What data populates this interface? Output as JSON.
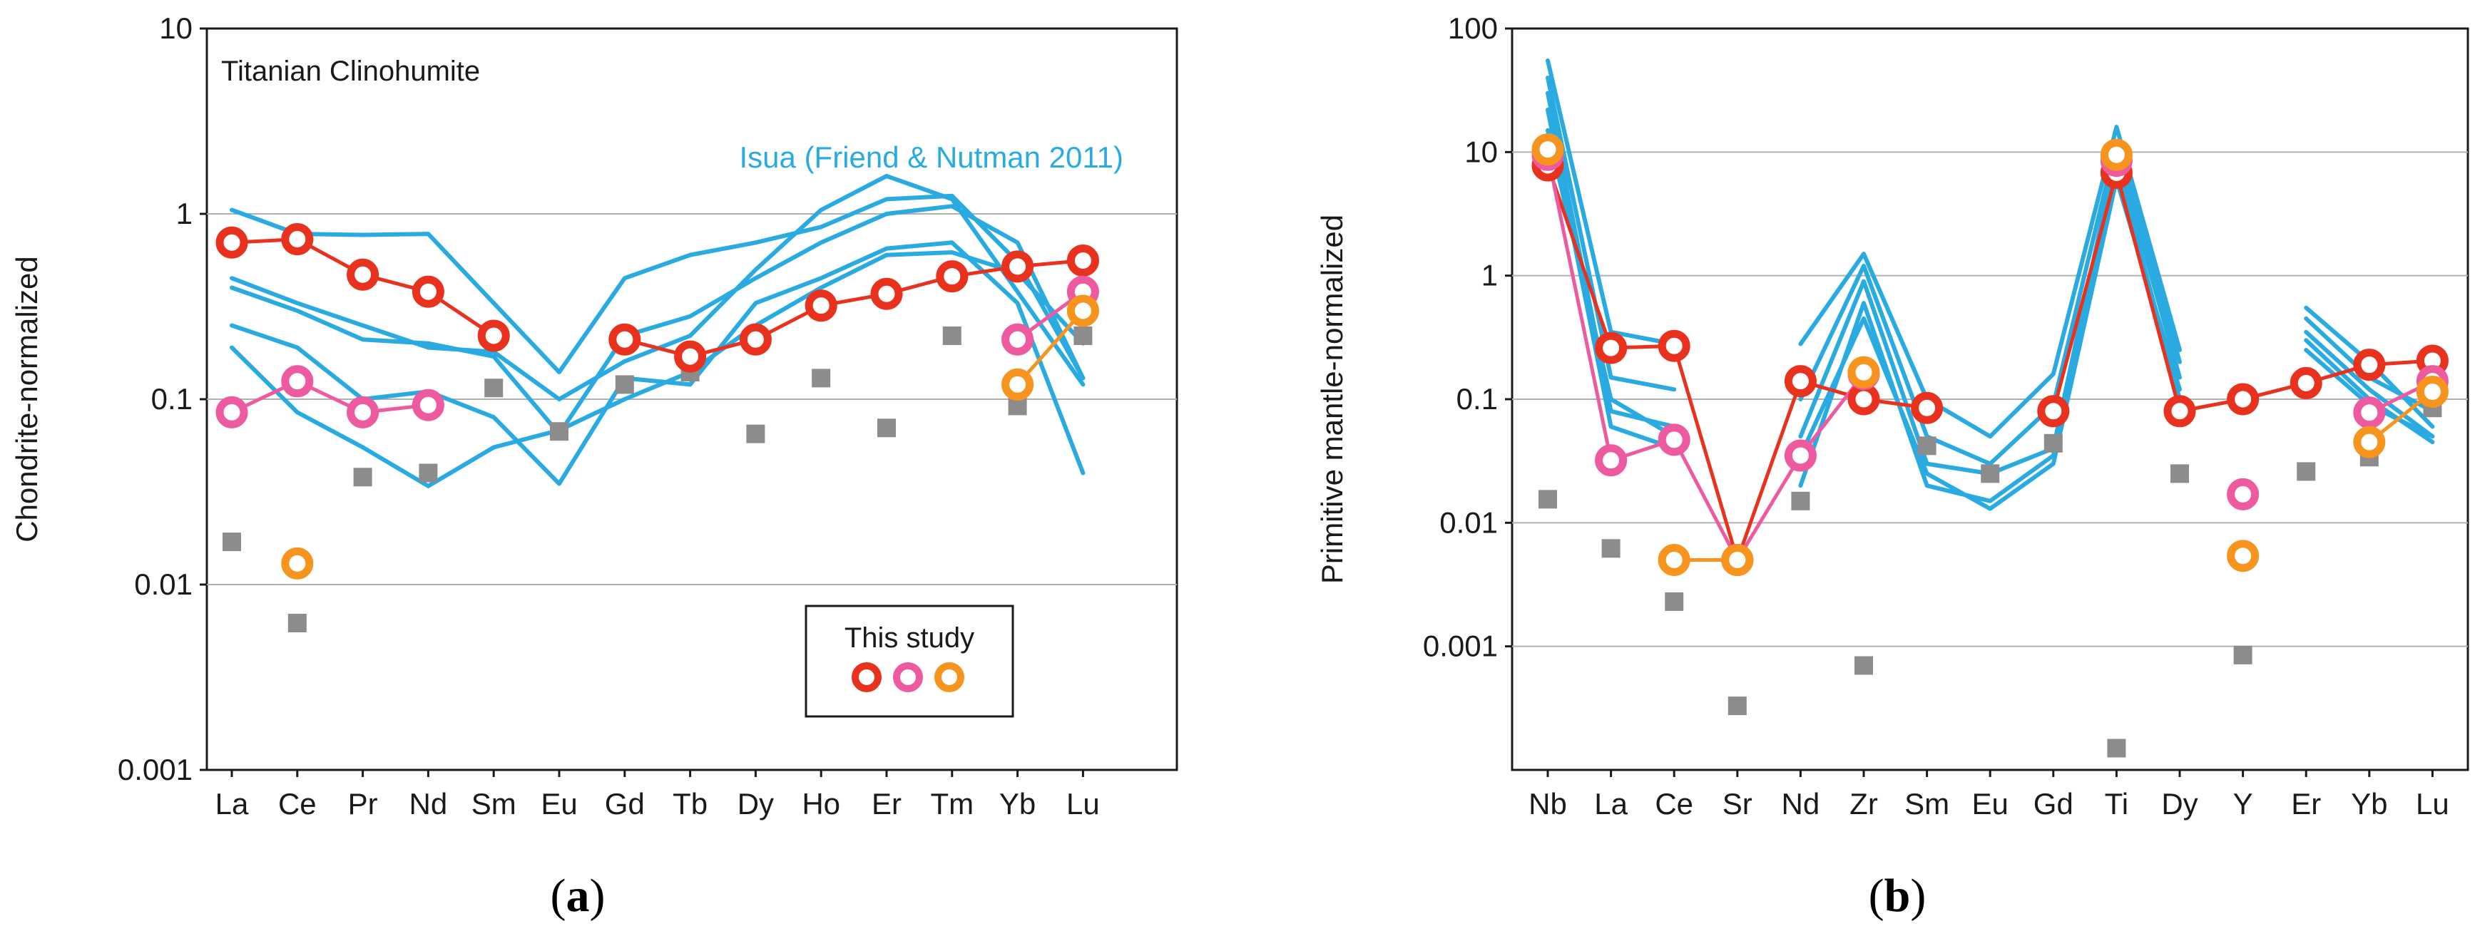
{
  "chart_data": [
    {
      "type": "line",
      "panel_label": "(a)",
      "panel_letter": "a",
      "yscale": "log",
      "ylim": [
        0.001,
        10
      ],
      "ylabel": "Chondrite-normalized",
      "y_tick_labels": [
        "10",
        "1",
        "0.1",
        "0.01",
        "0.001"
      ],
      "y_ticks": [
        10,
        1,
        0.1,
        0.01,
        0.001
      ],
      "gridlines": [
        1,
        0.1,
        0.01
      ],
      "categories": [
        "La",
        "Ce",
        "Pr",
        "Nd",
        "Sm",
        "Eu",
        "Gd",
        "Tb",
        "Dy",
        "Ho",
        "Er",
        "Tm",
        "Yb",
        "Lu"
      ],
      "title_text": "Titanian Clinohumite",
      "reference_label": "Isua (Friend & Nutman 2011)",
      "legend_title": "This study",
      "reference_lines": [
        {
          "name": "Isua 1",
          "values": [
            1.05,
            0.78,
            0.77,
            0.78,
            0.33,
            0.14,
            0.45,
            0.6,
            0.7,
            0.85,
            1.2,
            1.25,
            0.55,
            0.13
          ]
        },
        {
          "name": "Isua 2",
          "values": [
            0.45,
            0.33,
            0.25,
            0.19,
            0.18,
            0.1,
            0.16,
            0.22,
            0.5,
            1.05,
            1.6,
            1.2,
            0.38,
            0.12
          ]
        },
        {
          "name": "Isua 3",
          "values": [
            0.4,
            0.3,
            0.21,
            0.2,
            0.17,
            0.065,
            0.22,
            0.28,
            0.45,
            0.7,
            1.0,
            1.1,
            0.7,
            0.13
          ]
        },
        {
          "name": "Isua 4",
          "values": [
            0.25,
            0.19,
            0.1,
            0.11,
            0.08,
            0.035,
            0.13,
            0.12,
            0.33,
            0.45,
            0.65,
            0.7,
            0.33,
            0.04
          ]
        },
        {
          "name": "Isua 5",
          "values": [
            0.19,
            0.085,
            0.055,
            0.034,
            0.055,
            0.068,
            0.1,
            0.14,
            0.25,
            0.4,
            0.6,
            0.62,
            0.48,
            0.2
          ]
        }
      ],
      "series": [
        {
          "name": "This study (red)",
          "color": "#e8321e",
          "values": [
            0.7,
            0.73,
            0.47,
            0.38,
            0.22,
            null,
            0.21,
            0.17,
            0.21,
            0.32,
            0.37,
            0.46,
            0.52,
            0.56
          ],
          "connected": true
        },
        {
          "name": "This study (pink)",
          "color": "#ee5aa0",
          "values": [
            0.085,
            0.125,
            0.085,
            0.093,
            null,
            null,
            null,
            null,
            null,
            null,
            null,
            null,
            0.21,
            0.38
          ],
          "connected": true
        },
        {
          "name": "This study (orange)",
          "color": "#f7941d",
          "values": [
            null,
            0.013,
            null,
            null,
            null,
            null,
            null,
            null,
            null,
            null,
            null,
            null,
            0.12,
            0.3
          ],
          "connected": true
        }
      ],
      "grey_squares": [
        0.017,
        0.0062,
        0.038,
        0.04,
        0.115,
        0.067,
        0.12,
        0.14,
        0.065,
        0.13,
        0.07,
        0.22,
        0.092,
        0.22
      ]
    },
    {
      "type": "line",
      "panel_label": "(b)",
      "panel_letter": "b",
      "yscale": "log",
      "ylim": [
        0.0001,
        100
      ],
      "ylabel": "Primitive mantle-normalized",
      "y_tick_labels": [
        "100",
        "10",
        "1",
        "0.1",
        "0.01",
        "0.001"
      ],
      "y_ticks": [
        100,
        10,
        1,
        0.1,
        0.01,
        0.001
      ],
      "gridlines": [
        10,
        1,
        0.1,
        0.01,
        0.001
      ],
      "categories": [
        "Nb",
        "La",
        "Ce",
        "Sr",
        "Nd",
        "Zr",
        "Sm",
        "Eu",
        "Gd",
        "Ti",
        "Dy",
        "Y",
        "Er",
        "Yb",
        "Lu"
      ],
      "reference_lines": [
        {
          "name": "Isua 1",
          "values": [
            55,
            0.35,
            0.28,
            null,
            0.28,
            1.5,
            0.1,
            0.05,
            0.16,
            16,
            0.25,
            null,
            0.55,
            0.2,
            0.06
          ]
        },
        {
          "name": "Isua 2",
          "values": [
            40,
            0.15,
            0.12,
            null,
            0.1,
            1.2,
            0.05,
            0.03,
            0.09,
            12,
            0.2,
            null,
            0.45,
            0.15,
            0.08
          ]
        },
        {
          "name": "Isua 3",
          "values": [
            30,
            0.08,
            0.06,
            null,
            0.05,
            0.9,
            0.03,
            0.025,
            0.04,
            10,
            0.15,
            null,
            0.35,
            0.12,
            0.05
          ]
        },
        {
          "name": "Isua 4",
          "values": [
            22,
            0.06,
            0.04,
            null,
            0.02,
            0.6,
            0.02,
            0.015,
            0.035,
            8,
            0.1,
            null,
            0.3,
            0.1,
            0.045
          ]
        },
        {
          "name": "Isua 5",
          "values": [
            15,
            0.1,
            0.05,
            null,
            0.035,
            0.45,
            0.025,
            0.013,
            0.03,
            6,
            0.12,
            null,
            0.25,
            0.09,
            0.05
          ]
        }
      ],
      "series": [
        {
          "name": "This study (red)",
          "color": "#e8321e",
          "values": [
            7.8,
            0.26,
            0.27,
            0.005,
            0.14,
            0.1,
            0.085,
            null,
            0.08,
            6.8,
            0.08,
            0.1,
            0.135,
            0.19,
            0.205
          ],
          "connected": true
        },
        {
          "name": "This study (pink)",
          "color": "#ee5aa0",
          "values": [
            9.5,
            0.032,
            0.047,
            0.005,
            0.035,
            0.16,
            null,
            null,
            null,
            8.5,
            null,
            0.017,
            null,
            0.078,
            0.14
          ],
          "connected": true
        },
        {
          "name": "This study (orange)",
          "color": "#f7941d",
          "values": [
            10.5,
            null,
            0.005,
            0.005,
            null,
            0.165,
            null,
            null,
            null,
            9.5,
            null,
            0.0054,
            null,
            0.045,
            0.115
          ],
          "connected": true
        }
      ],
      "grey_squares": [
        0.0155,
        0.0062,
        0.0023,
        0.00033,
        0.015,
        0.0007,
        0.042,
        0.025,
        0.044,
        0.00015,
        0.025,
        0.00085,
        0.026,
        0.034,
        0.085
      ]
    }
  ]
}
